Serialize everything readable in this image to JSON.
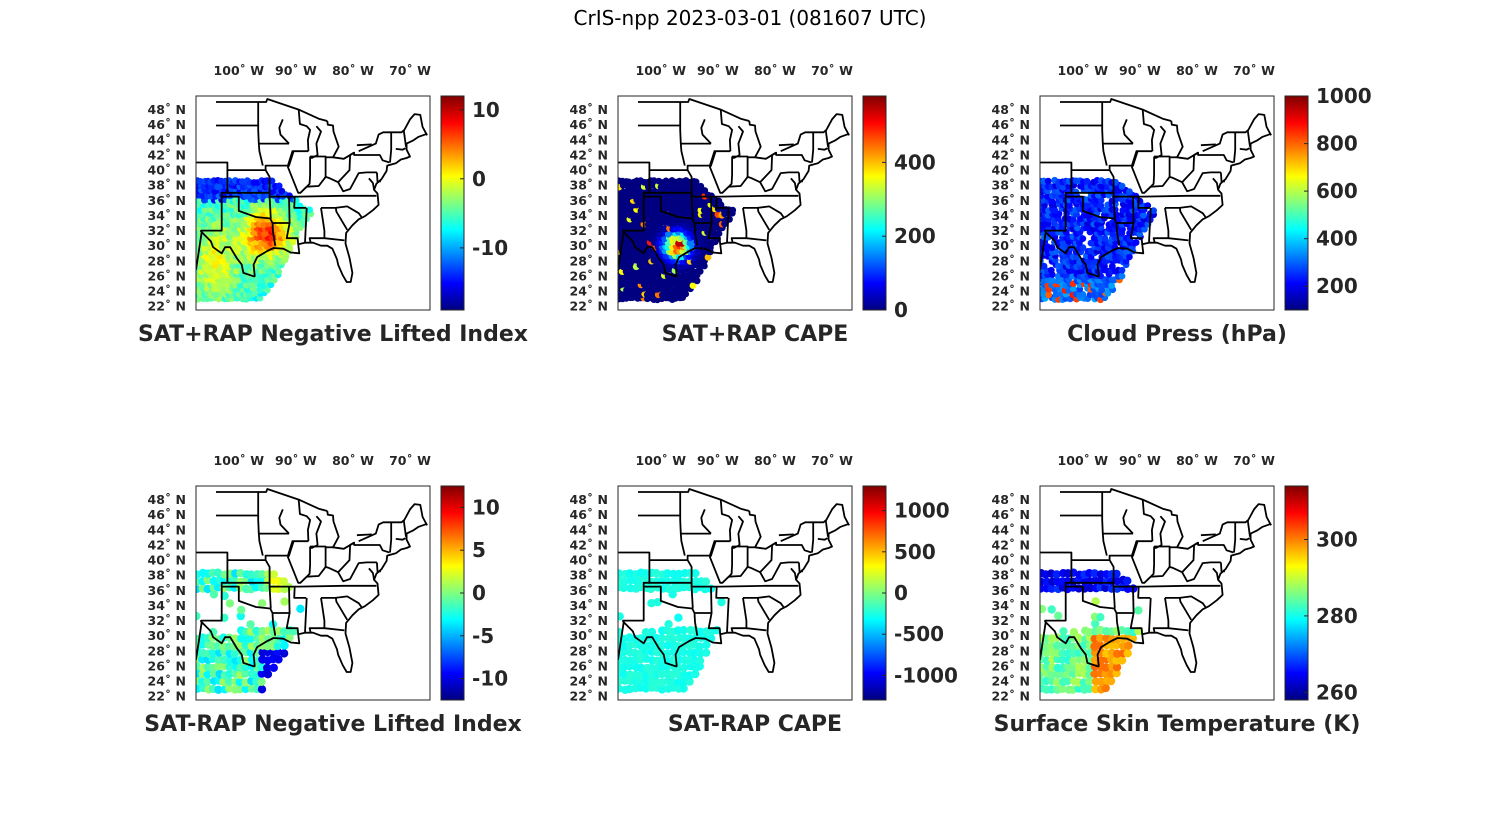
{
  "title": "CrIS-npp 2023-03-01 (081607 UTC)",
  "lon_ticks": [
    {
      "value": -100,
      "label": "100˚ W"
    },
    {
      "value": -90,
      "label": "90˚ W"
    },
    {
      "value": -80,
      "label": "80˚ W"
    },
    {
      "value": -70,
      "label": "70˚ W"
    }
  ],
  "lat_ticks": [
    {
      "value": 48,
      "label": "48˚ N"
    },
    {
      "value": 46,
      "label": "46˚ N"
    },
    {
      "value": 44,
      "label": "44˚ N"
    },
    {
      "value": 42,
      "label": "42˚ N"
    },
    {
      "value": 40,
      "label": "40˚ N"
    },
    {
      "value": 38,
      "label": "38˚ N"
    },
    {
      "value": 36,
      "label": "36˚ N"
    },
    {
      "value": 34,
      "label": "34˚ N"
    },
    {
      "value": 32,
      "label": "32˚ N"
    },
    {
      "value": 30,
      "label": "30˚ N"
    },
    {
      "value": 28,
      "label": "28˚ N"
    },
    {
      "value": 26,
      "label": "26˚ N"
    },
    {
      "value": 24,
      "label": "24˚ N"
    },
    {
      "value": 22,
      "label": "22˚ N"
    }
  ],
  "chart_data": [
    {
      "type": "heatmap",
      "title": "SAT+RAP Negative Lifted Index",
      "colormap": "jet",
      "clim": [
        -19,
        12
      ],
      "cbar_ticks": [
        10,
        0,
        -10
      ],
      "mode": "nli_total"
    },
    {
      "type": "heatmap",
      "title": "SAT+RAP CAPE",
      "colormap": "jet",
      "clim": [
        0,
        580
      ],
      "cbar_ticks": [
        400,
        200,
        0
      ],
      "mode": "cape_total"
    },
    {
      "type": "heatmap",
      "title": "Cloud Press (hPa)",
      "colormap": "jet",
      "clim": [
        100,
        1000
      ],
      "cbar_ticks": [
        1000,
        800,
        600,
        400,
        200
      ],
      "mode": "cloud_press"
    },
    {
      "type": "heatmap",
      "title": "SAT-RAP Negative Lifted Index",
      "colormap": "jet",
      "clim": [
        -12.5,
        12.5
      ],
      "cbar_ticks": [
        10,
        5,
        0,
        -5,
        -10
      ],
      "mode": "nli_diff"
    },
    {
      "type": "heatmap",
      "title": "SAT-RAP CAPE",
      "colormap": "jet",
      "clim": [
        -1300,
        1300
      ],
      "cbar_ticks": [
        1000,
        500,
        0,
        -500,
        -1000
      ],
      "mode": "cape_diff"
    },
    {
      "type": "heatmap",
      "title": "Surface Skin Temperature (K)",
      "colormap": "jet",
      "clim": [
        258,
        314
      ],
      "cbar_ticks": [
        300,
        280,
        260
      ],
      "mode": "skin_temp"
    }
  ]
}
